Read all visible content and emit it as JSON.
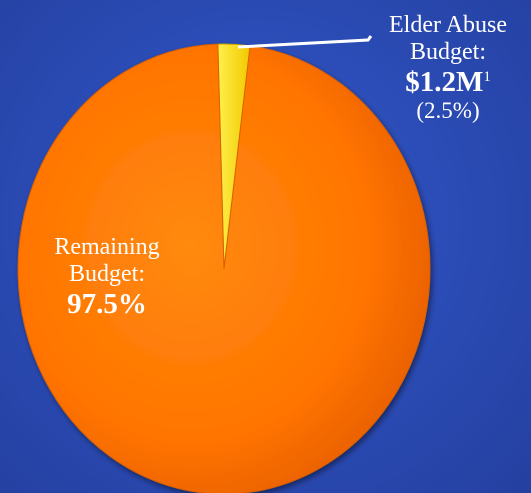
{
  "chart_data": {
    "type": "pie",
    "slices": [
      {
        "name": "Elder Abuse Budget",
        "value": 2.5,
        "color": "#ffe000"
      },
      {
        "name": "Remaining Budget",
        "value": 97.5,
        "color": "#ff7400"
      }
    ],
    "labels": {
      "elder": {
        "line1": "Elder Abuse",
        "line2": "Budget:",
        "amount": "$1.2M",
        "footnote": "1",
        "percent": "(2.5%)"
      },
      "remaining": {
        "line1": "Remaining",
        "line2": "Budget:",
        "percent": "97.5%"
      }
    },
    "background_color": "#2c4db8"
  }
}
